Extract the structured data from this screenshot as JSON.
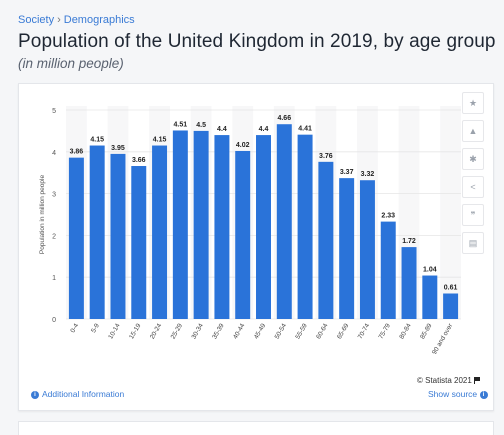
{
  "breadcrumb": [
    "Society",
    "Demographics"
  ],
  "title": "Population of the United Kingdom in 2019, by age group",
  "subtitle": "(in million people)",
  "chart_data": {
    "type": "bar",
    "title": "Population of the United Kingdom in 2019, by age group",
    "subtitle": "(in million people)",
    "xlabel": "",
    "ylabel": "Population in million people",
    "ylim": [
      0,
      5
    ],
    "yticks": [
      0,
      1,
      2,
      3,
      4,
      5
    ],
    "grid": true,
    "categories": [
      "0-4",
      "5-9",
      "10-14",
      "15-19",
      "20-24",
      "25-29",
      "30-34",
      "35-39",
      "40-44",
      "45-49",
      "50-54",
      "55-59",
      "60-64",
      "65-69",
      "70-74",
      "75-79",
      "80-84",
      "85-89",
      "90 and over"
    ],
    "values": [
      3.86,
      4.15,
      3.95,
      3.66,
      4.15,
      4.51,
      4.5,
      4.4,
      4.02,
      4.4,
      4.66,
      4.41,
      3.76,
      3.37,
      3.32,
      2.33,
      1.72,
      1.04,
      0.61
    ],
    "value_labels": [
      "3.86",
      "4.15",
      "3.95",
      "3.66",
      "4.15",
      "4.51",
      "4.5",
      "4.4",
      "4.02",
      "4.4",
      "4.66",
      "4.41",
      "3.76",
      "3.37",
      "3.32",
      "2.33",
      "1.72",
      "1.04",
      "0.61"
    ],
    "bar_color": "#2a73d9"
  },
  "footer": {
    "copyright": "© Statista 2021",
    "additional_info": "Additional Information",
    "show_source": "Show source"
  },
  "side_buttons": [
    "star-icon",
    "bell-icon",
    "gear-icon",
    "share-icon",
    "quote-icon",
    "print-icon"
  ]
}
